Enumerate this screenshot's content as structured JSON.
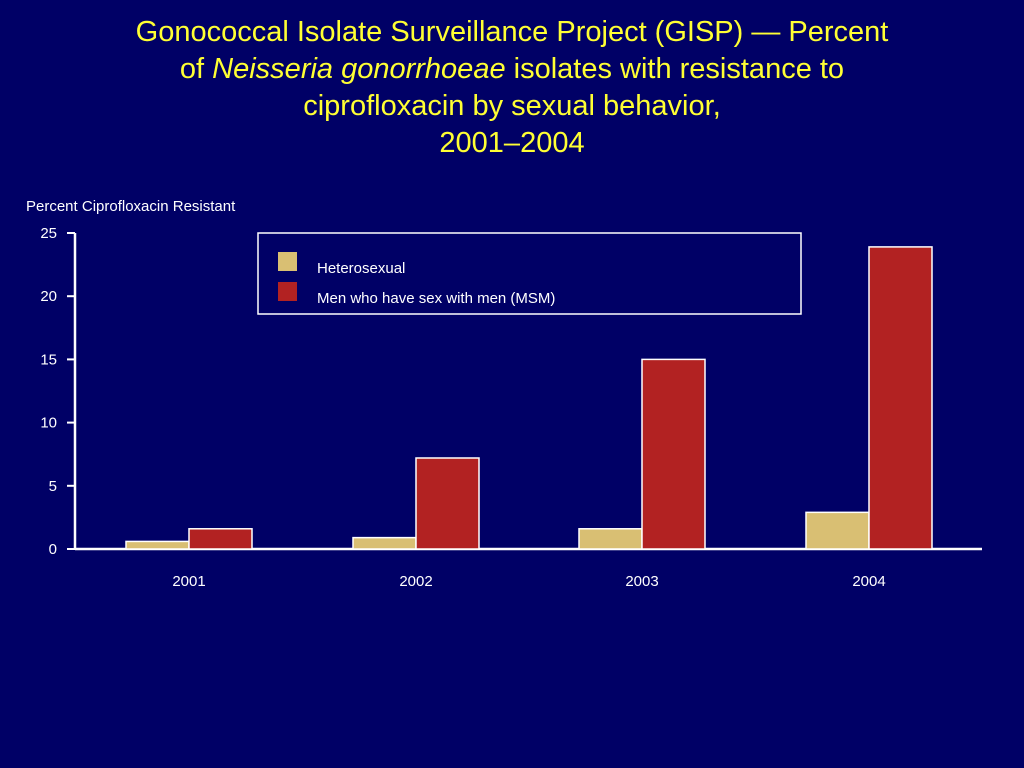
{
  "title": {
    "line1": "Gonococcal Isolate Surveillance Project (GISP) — Percent",
    "line2_pre": "of ",
    "line2_italic": "Neisseria gonorrhoeae",
    "line2_post": " isolates with resistance to",
    "line3": "ciprofloxacin by sexual behavior,",
    "line4": "2001–2004"
  },
  "colors": {
    "background": "#000066",
    "title": "#ffff33",
    "heterosexual": "#d9bf73",
    "msm": "#b22222",
    "axis": "#ffffff"
  },
  "chart_data": {
    "type": "bar",
    "ylabel": "Percent Ciprofloxacin Resistant",
    "xlabel": "",
    "categories": [
      "2001",
      "2002",
      "2003",
      "2004"
    ],
    "ylim": [
      0,
      25
    ],
    "yticks": [
      "0",
      "5",
      "10",
      "15",
      "20",
      "25"
    ],
    "grid": false,
    "legend_position": "top",
    "series": [
      {
        "name": "Heterosexual",
        "values": [
          0.6,
          0.9,
          1.6,
          2.9
        ]
      },
      {
        "name": "Men who have sex with men (MSM)",
        "values": [
          1.6,
          7.2,
          15.0,
          23.9
        ]
      }
    ]
  }
}
